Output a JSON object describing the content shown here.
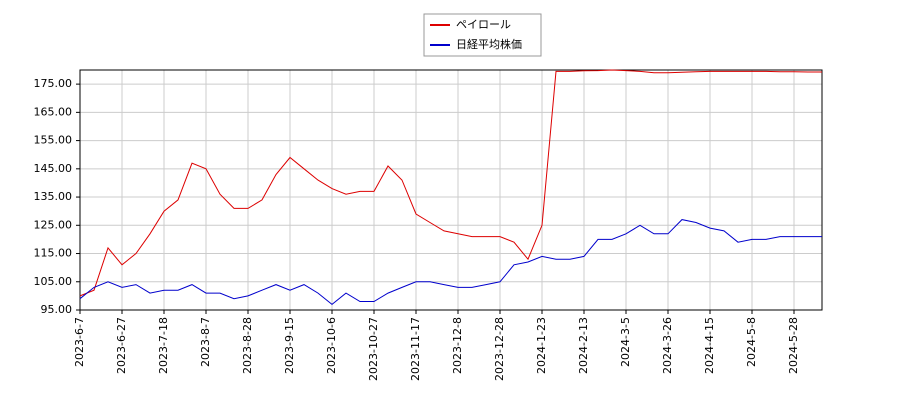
{
  "chart_data": {
    "type": "line",
    "categories": [
      "2023-6-7",
      null,
      null,
      "2023-6-27",
      null,
      null,
      "2023-7-18",
      null,
      null,
      "2023-8-7",
      null,
      null,
      "2023-8-28",
      null,
      null,
      "2023-9-15",
      null,
      null,
      "2023-10-6",
      null,
      null,
      "2023-10-27",
      null,
      null,
      "2023-11-17",
      null,
      null,
      "2023-12-8",
      null,
      null,
      "2023-12-28",
      null,
      null,
      "2024-1-23",
      null,
      null,
      "2024-2-13",
      null,
      null,
      "2024-3-5",
      null,
      null,
      "2024-3-26",
      null,
      null,
      "2024-4-15",
      null,
      null,
      "2024-5-8",
      null,
      null,
      "2024-5-28",
      null,
      null
    ],
    "series": [
      {
        "name": "ペイロール",
        "color": "#dd0000",
        "values": [
          100,
          102,
          117,
          111,
          115,
          122,
          130,
          134,
          147,
          145,
          136,
          131,
          131,
          134,
          143,
          149,
          145,
          141,
          138,
          136,
          137,
          137,
          146,
          141,
          129,
          126,
          123,
          122,
          121,
          121,
          121,
          119,
          113,
          125,
          179.5,
          179.5,
          179.7,
          179.8,
          180,
          179.8,
          179.5,
          179,
          179,
          179.2,
          179.4,
          179.5,
          179.5,
          179.5,
          179.5,
          179.5,
          179.4,
          179.4,
          179.3,
          179.3
        ]
      },
      {
        "name": "日経平均株価",
        "color": "#0000cc",
        "values": [
          99,
          103,
          105,
          103,
          104,
          101,
          102,
          102,
          104,
          101,
          101,
          99,
          100,
          102,
          104,
          102,
          104,
          101,
          97,
          101,
          98,
          98,
          101,
          103,
          105,
          105,
          104,
          103,
          103,
          104,
          105,
          111,
          112,
          114,
          113,
          113,
          114,
          120,
          120,
          122,
          125,
          122,
          122,
          127,
          126,
          124,
          123,
          119,
          120,
          120,
          121,
          121,
          121,
          121
        ]
      }
    ],
    "ylim": [
      95,
      180
    ],
    "yticks": [
      {
        "value": 95,
        "label": "95.00"
      },
      {
        "value": 105,
        "label": "105.00"
      },
      {
        "value": 115,
        "label": "115.00"
      },
      {
        "value": 125,
        "label": "125.00"
      },
      {
        "value": 135,
        "label": "135.00"
      },
      {
        "value": 145,
        "label": "145.00"
      },
      {
        "value": 155,
        "label": "155.00"
      },
      {
        "value": 165,
        "label": "165.00"
      },
      {
        "value": 175,
        "label": "175.00"
      }
    ],
    "grid": true,
    "legend": "top"
  }
}
